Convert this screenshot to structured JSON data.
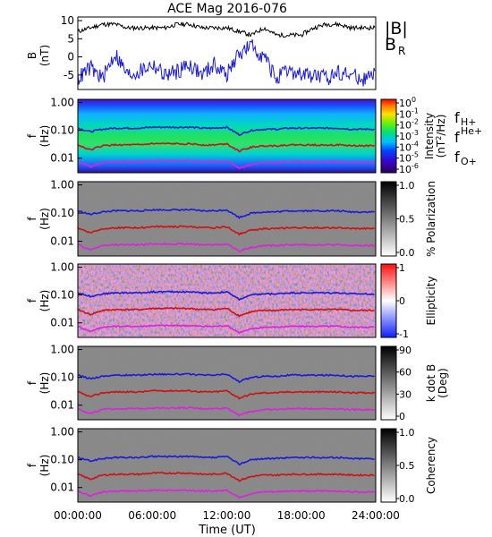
{
  "title": "ACE Mag 2016-076",
  "xlabel": "Time (UT)",
  "xticks": [
    "00:00:00",
    "06:00:00",
    "12:00:00",
    "18:00:00",
    "24:00:00"
  ],
  "legend_B": {
    "total": "|B|",
    "radial_main": "B",
    "radial_sub": "R",
    "total_color": "#000000",
    "radial_color": "#1a1adb"
  },
  "freq_legend": [
    {
      "main": "f",
      "sub": "H+",
      "color": "#1a1adb"
    },
    {
      "main": "f",
      "sub": "He+",
      "color": "#d01010"
    },
    {
      "main": "f",
      "sub": "O+",
      "color": "#e020e0"
    }
  ],
  "panels": [
    {
      "id": "b-field",
      "ylabel_main": "B",
      "ylabel_unit": "(nT)",
      "yticks": [
        "10",
        "5",
        "0",
        "-5"
      ]
    },
    {
      "id": "intensity",
      "ylabel_main": "f",
      "ylabel_unit": "(Hz)",
      "yticks": [
        "1.00",
        "0.10",
        "0.01"
      ],
      "cbar_label": "Intensity",
      "cbar_unit": "(nT",
      "cbar_unit_sup": "2",
      "cbar_unit_tail": "/Hz)",
      "cbar_ticks": [
        {
          "b": "10",
          "e": "0"
        },
        {
          "b": "10",
          "e": "-1"
        },
        {
          "b": "10",
          "e": "-2"
        },
        {
          "b": "10",
          "e": "-3"
        },
        {
          "b": "10",
          "e": "-4"
        },
        {
          "b": "10",
          "e": "-5"
        },
        {
          "b": "10",
          "e": "-6"
        }
      ]
    },
    {
      "id": "polarization",
      "ylabel_main": "f",
      "ylabel_unit": "(Hz)",
      "yticks": [
        "1.00",
        "0.10",
        "0.01"
      ],
      "cbar_label": "% Polarization",
      "cbar_ticks": [
        "1.0",
        "0.5",
        "0.0"
      ]
    },
    {
      "id": "ellipticity",
      "ylabel_main": "f",
      "ylabel_unit": "(Hz)",
      "yticks": [
        "1.00",
        "0.10",
        "0.01"
      ],
      "cbar_label": "Ellipticity",
      "cbar_ticks": [
        "1",
        "0",
        "-1"
      ]
    },
    {
      "id": "kdotb",
      "ylabel_main": "f",
      "ylabel_unit": "(Hz)",
      "yticks": [
        "1.00",
        "0.10",
        "0.01"
      ],
      "cbar_label": "k dot B",
      "cbar_unit": "(Deg)",
      "cbar_ticks": [
        "90",
        "60",
        "30",
        "0"
      ]
    },
    {
      "id": "coherency",
      "ylabel_main": "f",
      "ylabel_unit": "(Hz)",
      "yticks": [
        "1.00",
        "0.10",
        "0.01"
      ],
      "cbar_label": "Coherency",
      "cbar_ticks": [
        "1.0",
        "0.5",
        "0.0"
      ]
    }
  ],
  "chart_data": [
    {
      "type": "line",
      "title": "ACE Mag 2016-076",
      "ylabel": "B (nT)",
      "ylim": [
        -9,
        11
      ],
      "xlim": [
        0,
        24
      ],
      "x": [
        0,
        1,
        2,
        3,
        4,
        5,
        6,
        7,
        8,
        9,
        10,
        11,
        12,
        13,
        14,
        15,
        16,
        17,
        18,
        19,
        20,
        21,
        22,
        23,
        24
      ],
      "series": [
        {
          "name": "|B|",
          "values": [
            7,
            8,
            9,
            9,
            8,
            8,
            8,
            8,
            9,
            9,
            8,
            8,
            8,
            7,
            6,
            8,
            6,
            6,
            6,
            8,
            9,
            9,
            8,
            8,
            8
          ]
        },
        {
          "name": "BR",
          "values": [
            -6,
            -3,
            -6,
            1,
            -5,
            -4,
            -2,
            -5,
            -4,
            -2,
            -5,
            -2,
            -5,
            1,
            3,
            0,
            -6,
            -4,
            -5,
            -5,
            -6,
            -4,
            -5,
            -6,
            -5
          ]
        }
      ]
    },
    {
      "type": "heatmap",
      "ylabel": "f (Hz)",
      "yscale": "log",
      "ylim": [
        0.003,
        1.3
      ],
      "zlabel": "Intensity (nT2/Hz)",
      "zscale": "log",
      "zlim": [
        1e-06,
        1
      ],
      "x": [
        0,
        1,
        2,
        3,
        4,
        5,
        6,
        7,
        8,
        9,
        10,
        11,
        12,
        13,
        14,
        15,
        16,
        17,
        18,
        19,
        20,
        21,
        22,
        23,
        24
      ],
      "series": [
        {
          "name": "fH+",
          "values": [
            0.12,
            0.09,
            0.11,
            0.12,
            0.12,
            0.12,
            0.13,
            0.13,
            0.13,
            0.13,
            0.12,
            0.12,
            0.13,
            0.07,
            0.1,
            0.11,
            0.11,
            0.12,
            0.12,
            0.12,
            0.12,
            0.12,
            0.11,
            0.11,
            0.11
          ]
        },
        {
          "name": "fHe+",
          "values": [
            0.03,
            0.02,
            0.028,
            0.03,
            0.03,
            0.03,
            0.033,
            0.033,
            0.033,
            0.033,
            0.03,
            0.03,
            0.033,
            0.018,
            0.025,
            0.028,
            0.028,
            0.03,
            0.03,
            0.03,
            0.03,
            0.03,
            0.028,
            0.028,
            0.028
          ]
        },
        {
          "name": "fO+",
          "values": [
            0.0075,
            0.005,
            0.007,
            0.0075,
            0.0075,
            0.0075,
            0.008,
            0.008,
            0.008,
            0.008,
            0.0075,
            0.0075,
            0.008,
            0.0045,
            0.006,
            0.007,
            0.007,
            0.0075,
            0.0075,
            0.0075,
            0.0075,
            0.0075,
            0.007,
            0.007,
            0.007
          ]
        }
      ]
    },
    {
      "type": "heatmap",
      "ylabel": "f (Hz)",
      "yscale": "log",
      "zlabel": "% Polarization",
      "zlim": [
        0,
        1
      ]
    },
    {
      "type": "heatmap",
      "ylabel": "f (Hz)",
      "yscale": "log",
      "zlabel": "Ellipticity",
      "zlim": [
        -1,
        1
      ]
    },
    {
      "type": "heatmap",
      "ylabel": "f (Hz)",
      "yscale": "log",
      "zlabel": "k dot B (Deg)",
      "zlim": [
        0,
        90
      ]
    },
    {
      "type": "heatmap",
      "ylabel": "f (Hz)",
      "yscale": "log",
      "zlabel": "Coherency",
      "zlim": [
        0,
        1
      ]
    }
  ]
}
